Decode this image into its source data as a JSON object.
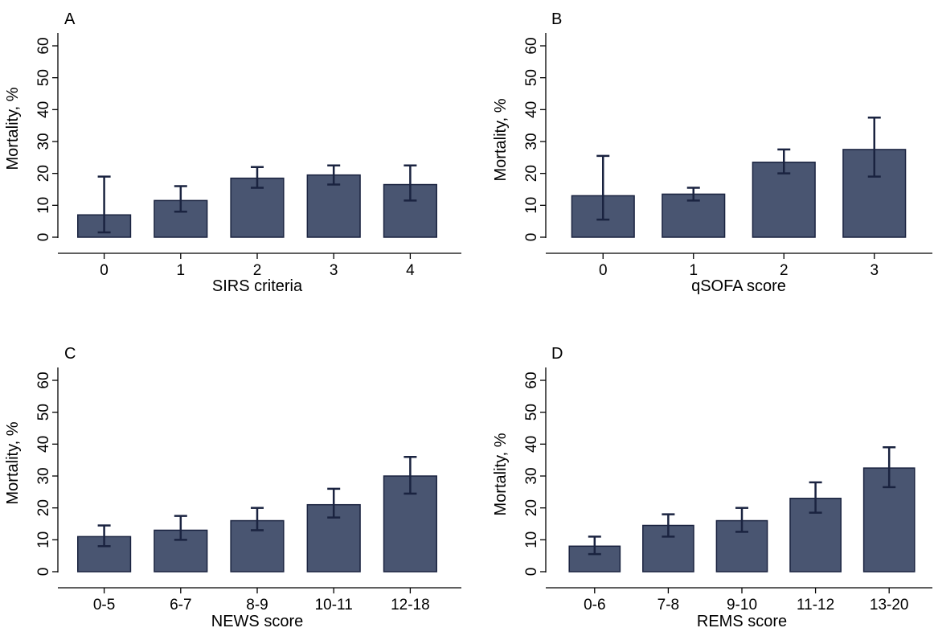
{
  "colors": {
    "bar_fill": "#495571",
    "bar_stroke": "#1a2340",
    "error_bar": "#1a2340",
    "axis": "#000000"
  },
  "chart_data": [
    {
      "panel_label": "A",
      "type": "bar",
      "xlabel": "SIRS criteria",
      "ylabel": "Mortality, %",
      "ylim": [
        0,
        60
      ],
      "yticks": [
        0,
        10,
        20,
        30,
        40,
        50,
        60
      ],
      "grid": false,
      "categories": [
        "0",
        "1",
        "2",
        "3",
        "4"
      ],
      "values": [
        7,
        11.5,
        18.5,
        19.5,
        16.5
      ],
      "ci_low": [
        1.5,
        8,
        15.5,
        16.5,
        11.5
      ],
      "ci_high": [
        19,
        16,
        22,
        22.5,
        22.5
      ]
    },
    {
      "panel_label": "B",
      "type": "bar",
      "xlabel": "qSOFA score",
      "ylabel": "Mortality, %",
      "ylim": [
        0,
        60
      ],
      "yticks": [
        0,
        10,
        20,
        30,
        40,
        50,
        60
      ],
      "grid": false,
      "categories": [
        "0",
        "1",
        "2",
        "3"
      ],
      "values": [
        13,
        13.5,
        23.5,
        27.5
      ],
      "ci_low": [
        5.5,
        11.5,
        20,
        19
      ],
      "ci_high": [
        25.5,
        15.5,
        27.5,
        37.5
      ]
    },
    {
      "panel_label": "C",
      "type": "bar",
      "xlabel": "NEWS score",
      "ylabel": "Mortality, %",
      "ylim": [
        0,
        60
      ],
      "yticks": [
        0,
        10,
        20,
        30,
        40,
        50,
        60
      ],
      "grid": false,
      "categories": [
        "0-5",
        "6-7",
        "8-9",
        "10-11",
        "12-18"
      ],
      "values": [
        11,
        13,
        16,
        21,
        30
      ],
      "ci_low": [
        8,
        10,
        13,
        17,
        24.5
      ],
      "ci_high": [
        14.5,
        17.5,
        20,
        26,
        36
      ]
    },
    {
      "panel_label": "D",
      "type": "bar",
      "xlabel": "REMS score",
      "ylabel": "Mortality, %",
      "ylim": [
        0,
        60
      ],
      "yticks": [
        0,
        10,
        20,
        30,
        40,
        50,
        60
      ],
      "grid": false,
      "categories": [
        "0-6",
        "7-8",
        "9-10",
        "11-12",
        "13-20"
      ],
      "values": [
        8,
        14.5,
        16,
        23,
        32.5
      ],
      "ci_low": [
        5.5,
        11,
        12.5,
        18.5,
        26.5
      ],
      "ci_high": [
        11,
        18,
        20,
        28,
        39
      ]
    }
  ]
}
